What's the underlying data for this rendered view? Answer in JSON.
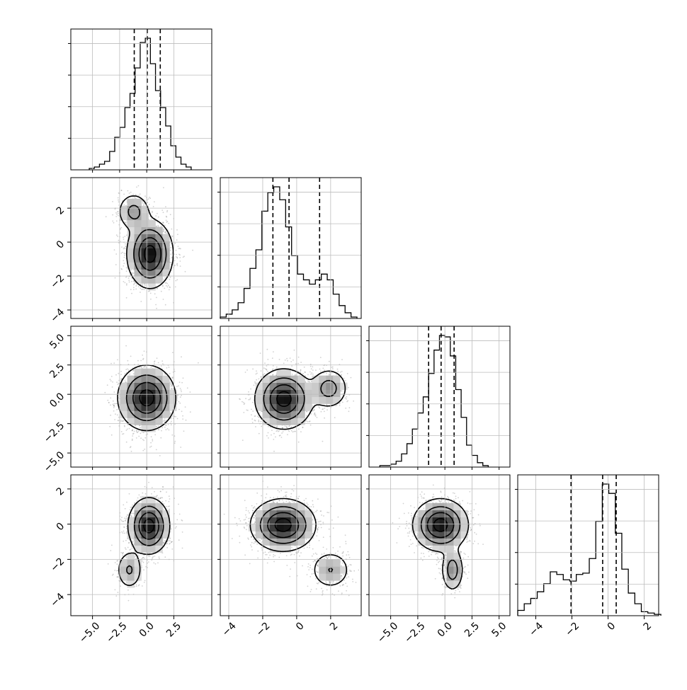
{
  "chart_data": {
    "type": "corner",
    "variables": [
      {
        "xlim": [
          -7.0,
          6.0
        ],
        "x_ticks": [
          -5.0,
          -2.5,
          0.0,
          2.5
        ],
        "x_tick_labels": [
          "−5.0",
          "−2.5",
          "0.0",
          "2.5"
        ],
        "diag_quantiles": [
          -1.15,
          0.05,
          1.25
        ],
        "diag_hist": {
          "edges": [
            -5.3,
            -4.83,
            -4.36,
            -3.89,
            -3.42,
            -2.95,
            -2.48,
            -2.01,
            -1.54,
            -1.07,
            -0.6,
            -0.13,
            0.34,
            0.81,
            1.28,
            1.75,
            2.22,
            2.69,
            3.16,
            3.63,
            4.1
          ],
          "counts": [
            1,
            2,
            4,
            6,
            13,
            23,
            30,
            44,
            54,
            72,
            90,
            93,
            75,
            56,
            44,
            31,
            17,
            9,
            4,
            2
          ]
        }
      },
      {
        "xlim": [
          -4.5,
          3.8
        ],
        "ylim": [
          -4.5,
          3.8
        ],
        "x_ticks": [
          -4,
          -2,
          0,
          2
        ],
        "x_tick_labels": [
          "−4",
          "−2",
          "0",
          "2"
        ],
        "y_ticks": [
          -4,
          -2,
          0,
          2
        ],
        "y_tick_labels": [
          "−4",
          "−2",
          "0",
          "2"
        ],
        "diag_quantiles": [
          -1.4,
          -0.45,
          1.35
        ],
        "diag_hist": {
          "edges": [
            -4.5,
            -4.15,
            -3.8,
            -3.45,
            -3.1,
            -2.75,
            -2.4,
            -2.05,
            -1.7,
            -1.35,
            -1.0,
            -0.65,
            -0.3,
            0.05,
            0.4,
            0.75,
            1.1,
            1.45,
            1.8,
            2.15,
            2.5,
            2.85,
            3.2,
            3.55
          ],
          "counts": [
            1,
            3,
            6,
            11,
            21,
            35,
            48,
            75,
            88,
            92,
            83,
            64,
            44,
            31,
            27,
            24,
            27,
            31,
            27,
            17,
            9,
            4,
            1
          ]
        }
      },
      {
        "xlim": [
          -7.0,
          6.0
        ],
        "ylim": [
          -6.2,
          5.8
        ],
        "x_ticks": [
          -5.0,
          -2.5,
          0.0,
          2.5,
          5.0
        ],
        "x_tick_labels": [
          "−5.0",
          "−2.5",
          "0.0",
          "2.5",
          "5.0"
        ],
        "y_ticks": [
          -5.0,
          -2.5,
          0.0,
          2.5,
          5.0
        ],
        "y_tick_labels": [
          "−5.0",
          "−2.5",
          "0.0",
          "2.5",
          "5.0"
        ],
        "diag_quantiles": [
          -1.5,
          -0.35,
          0.85
        ],
        "diag_hist": {
          "edges": [
            -6.0,
            -5.5,
            -5.0,
            -4.5,
            -4.0,
            -3.5,
            -3.0,
            -2.5,
            -2.0,
            -1.5,
            -1.0,
            -0.5,
            0.0,
            0.5,
            1.0,
            1.5,
            2.0,
            2.5,
            3.0,
            3.5,
            4.0
          ],
          "counts": [
            1,
            1,
            2,
            4,
            9,
            16,
            26,
            37,
            48,
            64,
            80,
            90,
            89,
            76,
            53,
            34,
            15,
            8,
            3,
            1
          ]
        }
      },
      {
        "xlim": [
          -5.0,
          2.8
        ],
        "ylim": [
          -5.2,
          2.8
        ],
        "x_ticks": [
          -4,
          -2,
          0,
          2
        ],
        "x_tick_labels": [
          "−4",
          "−2",
          "0",
          "2"
        ],
        "y_ticks": [
          -4,
          -2,
          0,
          2
        ],
        "y_tick_labels": [
          "−4",
          "−2",
          "0",
          "2"
        ],
        "diag_quantiles": [
          -2.05,
          -0.3,
          0.45
        ],
        "diag_hist": {
          "edges": [
            -5.0,
            -4.64,
            -4.28,
            -3.92,
            -3.56,
            -3.2,
            -2.84,
            -2.48,
            -2.12,
            -1.76,
            -1.4,
            -1.04,
            -0.68,
            -0.32,
            0.04,
            0.4,
            0.76,
            1.12,
            1.48,
            1.84,
            2.2,
            2.56,
            2.92
          ],
          "counts": [
            4,
            9,
            13,
            18,
            24,
            33,
            31,
            27,
            26,
            31,
            32,
            43,
            71,
            99,
            92,
            62,
            35,
            17,
            9,
            3,
            2,
            1
          ]
        }
      }
    ],
    "pairs": [
      {
        "row": 1,
        "col": 0,
        "modes": [
          {
            "x": 0.3,
            "y": -0.7,
            "sx": 1.0,
            "sy": 0.95,
            "w": 0.85
          },
          {
            "x": -1.2,
            "y": 1.8,
            "sx": 0.75,
            "sy": 0.55,
            "w": 0.15
          }
        ]
      },
      {
        "row": 2,
        "col": 0,
        "modes": [
          {
            "x": 0.0,
            "y": -0.3,
            "sx": 1.25,
            "sy": 1.3,
            "w": 1.0
          }
        ]
      },
      {
        "row": 2,
        "col": 1,
        "modes": [
          {
            "x": -0.75,
            "y": -0.4,
            "sx": 0.8,
            "sy": 1.2,
            "w": 0.82
          },
          {
            "x": 1.9,
            "y": 0.5,
            "sx": 0.55,
            "sy": 0.85,
            "w": 0.18
          }
        ]
      },
      {
        "row": 3,
        "col": 0,
        "modes": [
          {
            "x": 0.2,
            "y": -0.1,
            "sx": 0.9,
            "sy": 0.75,
            "w": 0.85
          },
          {
            "x": -1.6,
            "y": -2.6,
            "sx": 0.6,
            "sy": 0.55,
            "w": 0.15
          }
        ]
      },
      {
        "row": 3,
        "col": 1,
        "modes": [
          {
            "x": -0.8,
            "y": -0.05,
            "sx": 0.9,
            "sy": 0.7,
            "w": 0.85
          },
          {
            "x": 2.0,
            "y": -2.6,
            "sx": 0.6,
            "sy": 0.55,
            "w": 0.15
          }
        ]
      },
      {
        "row": 3,
        "col": 2,
        "modes": [
          {
            "x": -0.4,
            "y": -0.05,
            "sx": 1.2,
            "sy": 0.7,
            "w": 0.85
          },
          {
            "x": 0.7,
            "y": -2.6,
            "sx": 0.5,
            "sy": 0.6,
            "w": 0.15
          }
        ]
      }
    ],
    "grid": true,
    "contour_levels": [
      "0.5σ",
      "1σ",
      "1.5σ",
      "2σ"
    ]
  }
}
